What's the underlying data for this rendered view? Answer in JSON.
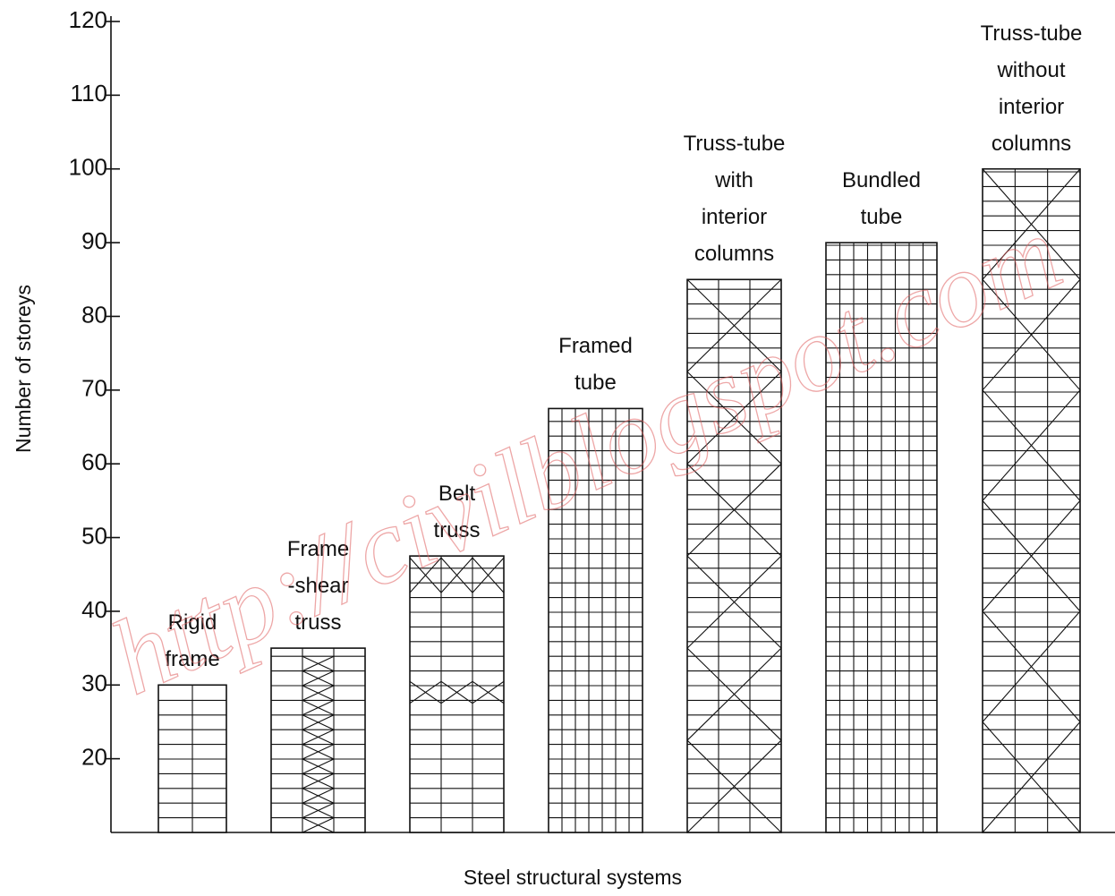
{
  "chart_data": {
    "type": "bar",
    "x_label": "Steel structural systems",
    "y_label": "Number  of storeys",
    "watermark": "http://civilblogspot.com",
    "categories": [
      "Rigid\nframe",
      "Frame\n-shear\ntruss",
      "Belt\ntruss",
      "Framed\ntube",
      "Truss-tube\nwith\ninterior\ncolumns",
      "Bundled\ntube",
      "Truss-tube\nwithout\ninterior\ncolumns"
    ],
    "values": [
      30,
      35,
      47.5,
      67.5,
      85,
      90,
      100
    ],
    "color": "#ffffff",
    "ylim": [
      10,
      120
    ],
    "yticks": [
      20,
      30,
      40,
      50,
      60,
      70,
      80,
      90,
      100,
      110,
      120
    ],
    "grid": false
  }
}
